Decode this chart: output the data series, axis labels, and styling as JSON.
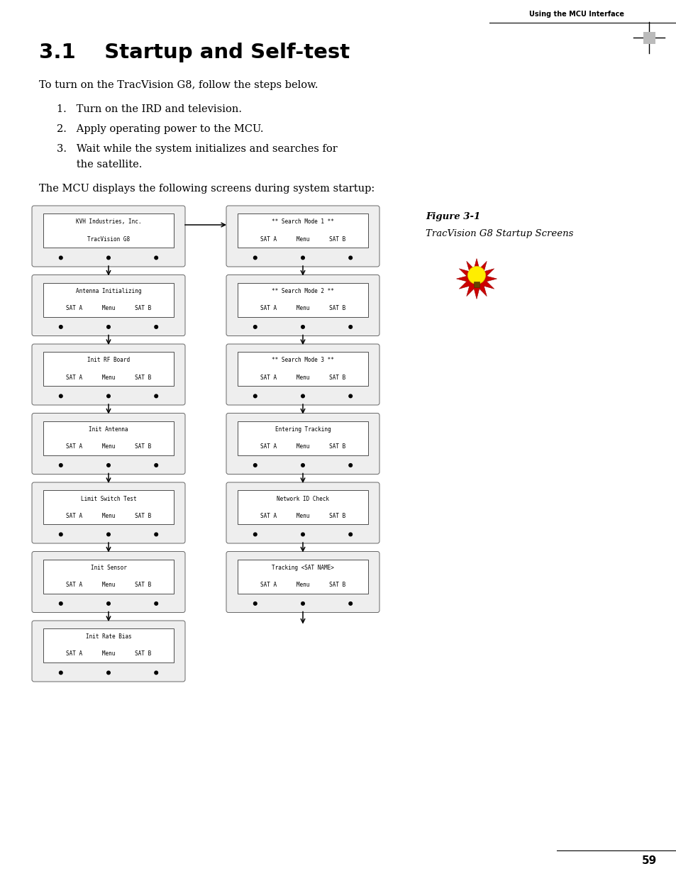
{
  "title": "3.1    Startup and Self-test",
  "header_label": "Using the MCU Interface",
  "intro_text": "To turn on the TracVision G8, follow the steps below.",
  "step1": "1.   Turn on the IRD and television.",
  "step2": "2.   Apply operating power to the MCU.",
  "step3a": "3.   Wait while the system initializes and searches for",
  "step3b": "      the satellite.",
  "figure_label": "Figure 3-1",
  "figure_caption": "TracVision G8 Startup Screens",
  "below_text": "The MCU displays the following screens during system startup:",
  "left_screens": [
    [
      "KVH Industries, Inc.",
      "TracVision G8"
    ],
    [
      "Antenna Initializing",
      "SAT A      Menu      SAT B"
    ],
    [
      "Init RF Board",
      "SAT A      Menu      SAT B"
    ],
    [
      "Init Antenna",
      "SAT A      Menu      SAT B"
    ],
    [
      "Limit Switch Test",
      "SAT A      Menu      SAT B"
    ],
    [
      "Init Sensor",
      "SAT A      Menu      SAT B"
    ],
    [
      "Init Rate Bias",
      "SAT A      Menu      SAT B"
    ]
  ],
  "right_screens": [
    [
      "** Search Mode 1 **",
      "SAT A      Menu      SAT B"
    ],
    [
      "** Search Mode 2 **",
      "SAT A      Menu      SAT B"
    ],
    [
      "** Search Mode 3 **",
      "SAT A      Menu      SAT B"
    ],
    [
      "Entering Tracking",
      "SAT A      Menu      SAT B"
    ],
    [
      "Network ID Check",
      "SAT A      Menu      SAT B"
    ],
    [
      "Tracking <SAT NAME>",
      "SAT A      Menu      SAT B"
    ]
  ],
  "page_number": "59",
  "bg_color": "#ffffff",
  "text_color": "#000000"
}
